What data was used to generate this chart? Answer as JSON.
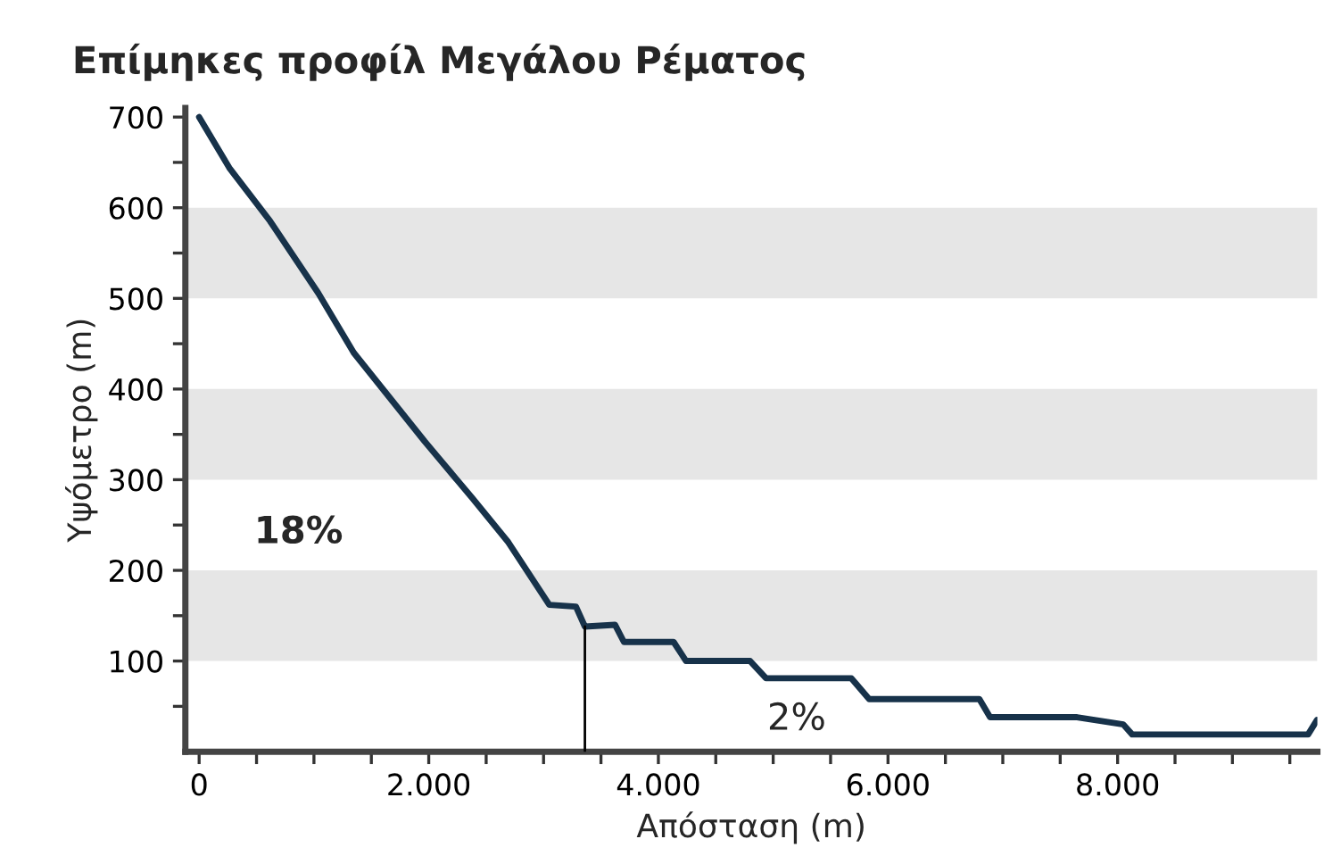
{
  "chart_data": {
    "type": "line",
    "title": "Επίμηκες προφίλ Μεγάλου Ρέματος",
    "xlabel": "Απόσταση (m)",
    "ylabel": "Υψόμετρο (m)",
    "xlim": [
      -120,
      9740
    ],
    "ylim": [
      0,
      710
    ],
    "xticks": [
      0,
      {
        "value": 500,
        "label": null
      },
      {
        "value": 1000,
        "label": null
      },
      {
        "value": 1500,
        "label": null
      },
      {
        "value": 2000,
        "label": "2.000"
      },
      {
        "value": 2500,
        "label": null
      },
      {
        "value": 3000,
        "label": null
      },
      {
        "value": 3500,
        "label": null
      },
      {
        "value": 4000,
        "label": "4.000"
      },
      {
        "value": 4500,
        "label": null
      },
      {
        "value": 5000,
        "label": null
      },
      {
        "value": 5500,
        "label": null
      },
      {
        "value": 6000,
        "label": "6.000"
      },
      {
        "value": 6500,
        "label": null
      },
      {
        "value": 7000,
        "label": null
      },
      {
        "value": 7500,
        "label": null
      },
      {
        "value": 8000,
        "label": "8.000"
      },
      {
        "value": 8500,
        "label": null
      },
      {
        "value": 9000,
        "label": null
      },
      {
        "value": 9500,
        "label": null
      }
    ],
    "yticks": [
      {
        "value": 50,
        "label": null
      },
      100,
      {
        "value": 150,
        "label": null
      },
      200,
      {
        "value": 250,
        "label": null
      },
      300,
      {
        "value": 350,
        "label": null
      },
      400,
      {
        "value": 450,
        "label": null
      },
      500,
      {
        "value": 550,
        "label": null
      },
      600,
      {
        "value": 650,
        "label": null
      },
      700
    ],
    "grid": false,
    "marker": "none",
    "line_style": "solid",
    "bands": [
      {
        "axis": "y",
        "from": 100,
        "to": 200,
        "color": "#e6e6e6"
      },
      {
        "axis": "y",
        "from": 300,
        "to": 400,
        "color": "#e6e6e6"
      },
      {
        "axis": "y",
        "from": 500,
        "to": 600,
        "color": "#e6e6e6"
      }
    ],
    "series": [
      {
        "color": "#17324a",
        "x": [
          0,
          263,
          619,
          1037,
          1347,
          1966,
          2384,
          2693,
          3050,
          3282,
          3360,
          3622,
          3700,
          4133,
          4241,
          4799,
          4938,
          5681,
          5836,
          6796,
          6889,
          7647,
          8050,
          8127,
          9659,
          9737
        ],
        "values": [
          700,
          644,
          585,
          506,
          440,
          342,
          279,
          231,
          162,
          160,
          138,
          140,
          121,
          121,
          100,
          100,
          81,
          81,
          58,
          58,
          38,
          38,
          30,
          19,
          19,
          35
        ]
      },
      {
        "color": "#000000",
        "x": [
          3360,
          3360
        ],
        "values": [
          0,
          138
        ]
      }
    ],
    "annotations": [
      "18%",
      "2%"
    ]
  }
}
